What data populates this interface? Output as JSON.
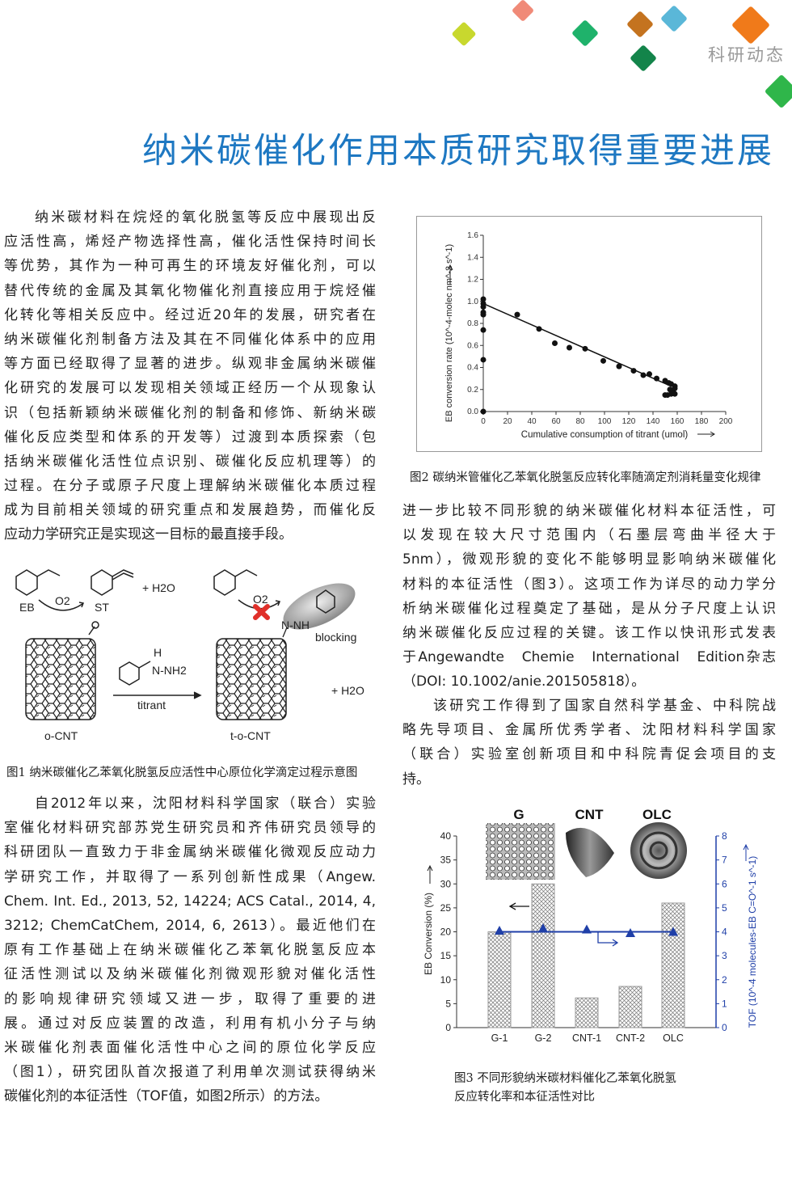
{
  "header": {
    "section_tag": "科研动态",
    "title": "纳米碳催化作用本质研究取得重要进展",
    "decor_colors": [
      "#f08a78",
      "#c8d82e",
      "#1fb26b",
      "#c4731f",
      "#5ab7d8",
      "#f07a1a",
      "#13844a",
      "#2fb64a"
    ]
  },
  "article": {
    "left_para1": [
      "纳米碳材料在烷烃的氧化脱氢等反应中展现出反",
      "应活性高，烯烃产物选择性高，催化活性保持时间长",
      "等优势，其作为一种可再生的环境友好催化剂，可以",
      "替代传统的金属及其氧化物催化剂直接应用于烷烃催",
      "化转化等相关反应中。经过近20年的发展，研究者在",
      "纳米碳催化剂制备方法及其在不同催化体系中的应用",
      "等方面已经取得了显著的进步。纵观非金属纳米碳催",
      "化研究的发展可以发现相关领域正经历一个从现象认",
      "识（包括新颖纳米碳催化剂的制备和修饰、新纳米碳",
      "催化反应类型和体系的开发等）过渡到本质探索（包",
      "括纳米碳催化活性位点识别、碳催化反应机理等）的",
      "过程。在分子或原子尺度上理解纳米碳催化本质过程",
      "成为目前相关领域的研究重点和发展趋势，而催化反",
      "应动力学研究正是实现这一目标的最直接手段。"
    ],
    "left_para2": [
      "自2012年以来，沈阳材料科学国家（联合）实验",
      "室催化材料研究部苏党生研究员和齐伟研究员领导的",
      "科研团队一直致力于非金属纳米碳催化微观反应动力",
      "学研究工作，并取得了一系列创新性成果（Angew.",
      "Chem. Int. Ed., 2013, 52, 14224; ACS Catal., 2014, 4,",
      "3212; ChemCatChem, 2014, 6, 2613）。最近他们在",
      "原有工作基础上在纳米碳催化乙苯氧化脱氢反应本",
      "征活性测试以及纳米碳催化剂微观形貌对催化活性",
      "的影响规律研究领域又进一步，取得了重要的进",
      "展。通过对反应装置的改造，利用有机小分子与纳",
      "米碳催化剂表面催化活性中心之间的原位化学反应",
      "（图1），研究团队首次报道了利用单次测试获得纳米",
      "碳催化剂的本征活性（TOF值，如图2所示）的方法。"
    ],
    "right_para1": [
      "进一步比较不同形貌的纳米碳催化材料本征活性，可",
      "以发现在较大尺寸范围内（石墨层弯曲半径大于",
      "5nm），微观形貌的变化不能够明显影响纳米碳催化",
      "材料的本征活性（图3）。这项工作为详尽的动力学分",
      "析纳米碳催化过程奠定了基础，是从分子尺度上认识",
      "纳米碳催化反应过程的关键。该工作以快讯形式发表",
      "于Angewandte　Chemie　International　Edition杂志",
      "（DOI: 10.1002/anie.201505818）。"
    ],
    "right_para2": [
      "该研究工作得到了国家自然科学基金、中科院战",
      "略先导项目、金属所优秀学者、沈阳材料科学国家",
      "（联合）实验室创新项目和中科院青促会项目的支",
      "持。"
    ]
  },
  "figure1": {
    "caption": "图1 纳米碳催化乙苯氧化脱氢反应活性中心原位化学滴定过程示意图",
    "labels": {
      "eb": "EB",
      "o2": "O2",
      "st": "ST",
      "h2o": "+ H2O",
      "o_cnt": "o-CNT",
      "titrant": "titrant",
      "t_o_cnt": "t-o-CNT",
      "blocking": "blocking",
      "h": "H",
      "nh2": "N-NH2",
      "n_nh": "N-NH",
      "h2o_2": "+ H2O"
    },
    "block_color": "#e0302a"
  },
  "figure2": {
    "caption": "图2 碳纳米管催化乙苯氧化脱氢反应转化率随滴定剂消耗量变化规律",
    "chart_data": {
      "type": "scatter",
      "xlabel": "Cumulative consumption of titrant (umol)",
      "ylabel": "EB conversion rate (10^-4-molec nm^-2 s^-1)",
      "xlim": [
        0,
        200
      ],
      "ylim": [
        0,
        1.6
      ],
      "x_ticks": [
        "0",
        "20",
        "40",
        "60",
        "80",
        "100",
        "120",
        "140",
        "160",
        "180",
        "200"
      ],
      "y_ticks": [
        "0.0",
        "0.2",
        "0.4",
        "0.6",
        "0.8",
        "1.0",
        "1.2",
        "1.4",
        "1.6"
      ],
      "points": [
        [
          0,
          1.02
        ],
        [
          0,
          0.98
        ],
        [
          0,
          0.95
        ],
        [
          0,
          0.9
        ],
        [
          0,
          0.88
        ],
        [
          0,
          0.74
        ],
        [
          0,
          0.47
        ],
        [
          0,
          0.0
        ],
        [
          28,
          0.88
        ],
        [
          46,
          0.75
        ],
        [
          59,
          0.62
        ],
        [
          71,
          0.58
        ],
        [
          84,
          0.57
        ],
        [
          99,
          0.46
        ],
        [
          112,
          0.41
        ],
        [
          124,
          0.37
        ],
        [
          132,
          0.33
        ],
        [
          137,
          0.34
        ],
        [
          143,
          0.3
        ],
        [
          150,
          0.28
        ],
        [
          153,
          0.26
        ],
        [
          155,
          0.25
        ],
        [
          158,
          0.23
        ],
        [
          158,
          0.21
        ],
        [
          154,
          0.2
        ],
        [
          156,
          0.18
        ],
        [
          150,
          0.15
        ],
        [
          152,
          0.15
        ],
        [
          155,
          0.16
        ],
        [
          158,
          0.16
        ],
        [
          157,
          0.17
        ]
      ],
      "fit_line": [
        [
          0,
          0.98
        ],
        [
          155,
          0.23
        ]
      ],
      "grid": false
    }
  },
  "figure3": {
    "caption_lines": [
      "图3 不同形貌纳米碳材料催化乙苯氧化脱氢",
      "反应转化率和本征活性对比"
    ],
    "image_labels": [
      "G",
      "CNT",
      "OLC"
    ],
    "chart_data": {
      "type": "bar",
      "categories": [
        "G-1",
        "G-2",
        "CNT-1",
        "CNT-2",
        "OLC"
      ],
      "series": [
        {
          "axis": "left",
          "values": [
            20,
            30,
            6.2,
            8.6,
            26
          ]
        },
        {
          "axis": "right",
          "type": "line",
          "values": [
            4.05,
            4.15,
            4.1,
            3.95,
            4.0
          ],
          "color": "#1f3fa8"
        }
      ],
      "ylabel": "EB Conversion (%)",
      "ylabel_right": "TOF (10^-4 molecules-EB C=O^-1 s^-1)",
      "ylim": [
        0,
        40
      ],
      "ylim_right": [
        0,
        8
      ],
      "y_ticks": [
        "0",
        "5",
        "10",
        "15",
        "20",
        "25",
        "30",
        "35",
        "40"
      ],
      "y_ticks_right": [
        "0",
        "1",
        "2",
        "3",
        "4",
        "5",
        "6",
        "7",
        "8"
      ],
      "grid": false
    }
  }
}
